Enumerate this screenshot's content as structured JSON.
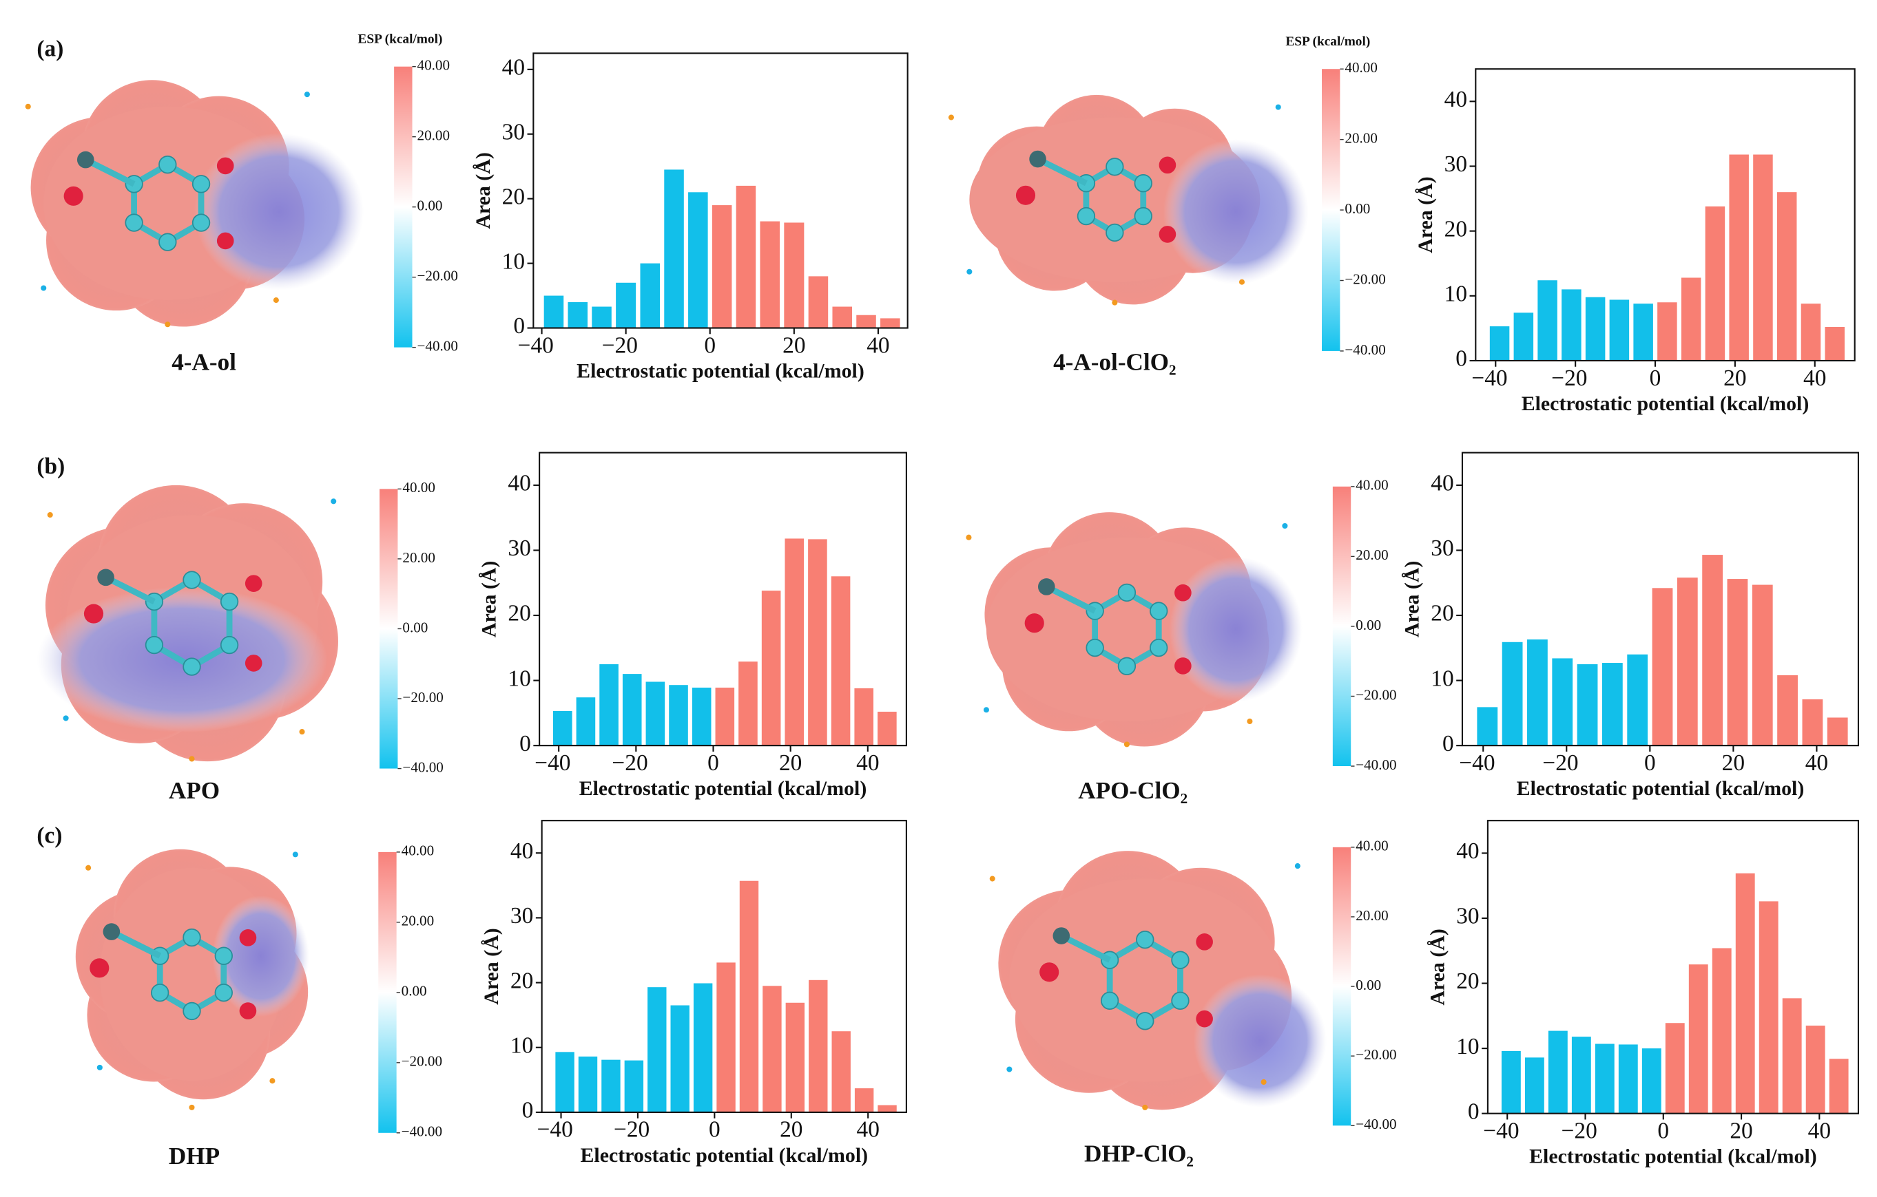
{
  "panel_labels": [
    "(a)",
    "(b)",
    "(c)"
  ],
  "molecules": [
    {
      "name": "4-A-ol",
      "colorbar": {
        "title": "ESP (kcal/mol)",
        "lim": [
          -40,
          40
        ],
        "ticks": [
          {
            "value": 40,
            "label": "40.00"
          },
          {
            "value": 20,
            "label": "20.00"
          },
          {
            "value": 0,
            "label": "0.00"
          },
          {
            "value": -20,
            "label": "−20.00"
          },
          {
            "value": -40,
            "label": "−40.00"
          }
        ]
      }
    },
    {
      "name": "4-A-ol-ClO₂",
      "colorbar": {
        "title": "ESP (kcal/mol)",
        "lim": [
          -40,
          40
        ],
        "ticks": [
          {
            "value": 40,
            "label": "40.00"
          },
          {
            "value": 20,
            "label": "20.00"
          },
          {
            "value": 0,
            "label": "0.00"
          },
          {
            "value": -20,
            "label": "−20.00"
          },
          {
            "value": -40,
            "label": "−40.00"
          }
        ]
      }
    },
    {
      "name": "APO",
      "colorbar": {
        "lim": [
          -40,
          40
        ],
        "ticks": [
          {
            "value": 40,
            "label": "40.00"
          },
          {
            "value": 20,
            "label": "20.00"
          },
          {
            "value": 0,
            "label": "0.00"
          },
          {
            "value": -20,
            "label": "−20.00"
          },
          {
            "value": -40,
            "label": "−40.00"
          }
        ]
      }
    },
    {
      "name": "APO-ClO₂",
      "colorbar": {
        "lim": [
          -40,
          40
        ],
        "ticks": [
          {
            "value": 40,
            "label": "40.00"
          },
          {
            "value": 20,
            "label": "20.00"
          },
          {
            "value": 0,
            "label": "0.00"
          },
          {
            "value": -20,
            "label": "−20.00"
          },
          {
            "value": -40,
            "label": "−40.00"
          }
        ]
      }
    },
    {
      "name": "DHP",
      "colorbar": {
        "lim": [
          -40,
          40
        ],
        "ticks": [
          {
            "value": 40,
            "label": "40.00"
          },
          {
            "value": 20,
            "label": "20.00"
          },
          {
            "value": 0,
            "label": "0.00"
          },
          {
            "value": -20,
            "label": "−20.00"
          },
          {
            "value": -40,
            "label": "−40.00"
          }
        ]
      }
    },
    {
      "name": "DHP-ClO₂",
      "colorbar": {
        "lim": [
          -40,
          40
        ],
        "ticks": [
          {
            "value": 40,
            "label": "40.00"
          },
          {
            "value": 20,
            "label": "20.00"
          },
          {
            "value": 0,
            "label": "0.00"
          },
          {
            "value": -20,
            "label": "−20.00"
          },
          {
            "value": -40,
            "label": "−40.00"
          }
        ]
      }
    }
  ],
  "chart_data": [
    {
      "type": "histogram",
      "xlabel": "Electrostatic potential (kcal/mol)",
      "ylabel": "Area (Å)",
      "bins": [
        -40,
        -34.3,
        -28.6,
        -22.9,
        -17.1,
        -11.4,
        -5.7,
        0,
        5.7,
        11.4,
        17.1,
        22.9,
        28.6,
        34.3,
        40,
        45.7
      ],
      "values": [
        5,
        4,
        3.3,
        7,
        10,
        24.5,
        21,
        19,
        22,
        16.5,
        16.3,
        8,
        3.3,
        2,
        1.5
      ],
      "color_negative": "#12bfea",
      "color_positive": "#f87f73",
      "xlim": [
        -42,
        47
      ],
      "ylim": [
        0,
        42.5
      ],
      "xticks": [
        {
          "value": -40,
          "label": "−40"
        },
        {
          "value": -20,
          "label": "−20"
        },
        0,
        20,
        40
      ],
      "yticks": [
        0,
        10,
        20,
        30,
        40
      ]
    },
    {
      "type": "histogram",
      "xlabel": "Electrostatic potential (kcal/mol)",
      "ylabel": "Area (Å)",
      "bins": [
        -42,
        -36,
        -30,
        -24,
        -18,
        -12,
        -6,
        0,
        6,
        12,
        18,
        24,
        30,
        36,
        42,
        48
      ],
      "values": [
        5.3,
        7.4,
        12.4,
        11,
        9.8,
        9.4,
        8.8,
        9,
        12.8,
        23.8,
        31.8,
        31.8,
        26,
        8.8,
        5.2
      ],
      "color_negative": "#12bfea",
      "color_positive": "#f87f73",
      "xlim": [
        -45,
        50
      ],
      "ylim": [
        0,
        45
      ],
      "xticks": [
        {
          "value": -40,
          "label": "−40"
        },
        {
          "value": -20,
          "label": "−20"
        },
        0,
        20,
        40
      ],
      "yticks": [
        0,
        10,
        20,
        30,
        40
      ]
    },
    {
      "type": "histogram",
      "xlabel": "Electrostatic potential (kcal/mol)",
      "ylabel": "Area (Å)",
      "bins": [
        -42,
        -36,
        -30,
        -24,
        -18,
        -12,
        -6,
        0,
        6,
        12,
        18,
        24,
        30,
        36,
        42,
        48
      ],
      "values": [
        5.3,
        7.4,
        12.5,
        11,
        9.8,
        9.3,
        8.9,
        8.9,
        12.9,
        23.8,
        31.8,
        31.7,
        26,
        8.8,
        5.2
      ],
      "color_negative": "#12bfea",
      "color_positive": "#f87f73",
      "xlim": [
        -45,
        50
      ],
      "ylim": [
        0,
        45
      ],
      "xticks": [
        {
          "value": -40,
          "label": "−40"
        },
        {
          "value": -20,
          "label": "−20"
        },
        0,
        20,
        40
      ],
      "yticks": [
        0,
        10,
        20,
        30,
        40
      ]
    },
    {
      "type": "histogram",
      "xlabel": "Electrostatic potential (kcal/mol)",
      "ylabel": "Area (Å)",
      "bins": [
        -42,
        -36,
        -30,
        -24,
        -18,
        -12,
        -6,
        0,
        6,
        12,
        18,
        24,
        30,
        36,
        42,
        48
      ],
      "values": [
        5.9,
        15.9,
        16.3,
        13.4,
        12.5,
        12.7,
        14,
        24.2,
        25.8,
        29.3,
        25.6,
        24.7,
        10.8,
        7.1,
        4.3
      ],
      "color_negative": "#12bfea",
      "color_positive": "#f87f73",
      "xlim": [
        -45,
        50
      ],
      "ylim": [
        0,
        45
      ],
      "xticks": [
        {
          "value": -40,
          "label": "−40"
        },
        {
          "value": -20,
          "label": "−20"
        },
        0,
        20,
        40
      ],
      "yticks": [
        0,
        10,
        20,
        30,
        40
      ]
    },
    {
      "type": "histogram",
      "xlabel": "Electrostatic potential (kcal/mol)",
      "ylabel": "Area (Å)",
      "bins": [
        -42,
        -36,
        -30,
        -24,
        -18,
        -12,
        -6,
        0,
        6,
        12,
        18,
        24,
        30,
        36,
        42,
        48
      ],
      "values": [
        9.3,
        8.6,
        8.1,
        8,
        19.3,
        16.5,
        19.9,
        23.1,
        35.7,
        19.5,
        16.9,
        20.4,
        12.5,
        3.7,
        1.1
      ],
      "color_negative": "#12bfea",
      "color_positive": "#f87f73",
      "xlim": [
        -45,
        50
      ],
      "ylim": [
        0,
        45
      ],
      "xticks": [
        {
          "value": -40,
          "label": "−40"
        },
        {
          "value": -20,
          "label": "−20"
        },
        0,
        20,
        40
      ],
      "yticks": [
        0,
        10,
        20,
        30,
        40
      ]
    },
    {
      "type": "histogram",
      "xlabel": "Electrostatic potential (kcal/mol)",
      "ylabel": "Area (Å)",
      "bins": [
        -42,
        -36,
        -30,
        -24,
        -18,
        -12,
        -6,
        0,
        6,
        12,
        18,
        24,
        30,
        36,
        42,
        48
      ],
      "values": [
        9.6,
        8.6,
        12.7,
        11.8,
        10.7,
        10.6,
        10,
        13.9,
        22.9,
        25.4,
        36.9,
        32.6,
        17.7,
        13.5,
        8.4
      ],
      "color_negative": "#12bfea",
      "color_positive": "#f87f73",
      "xlim": [
        -45,
        50
      ],
      "ylim": [
        0,
        45
      ],
      "xticks": [
        {
          "value": -40,
          "label": "−40"
        },
        {
          "value": -20,
          "label": "−20"
        },
        0,
        20,
        40
      ],
      "yticks": [
        0,
        10,
        20,
        30,
        40
      ]
    }
  ]
}
